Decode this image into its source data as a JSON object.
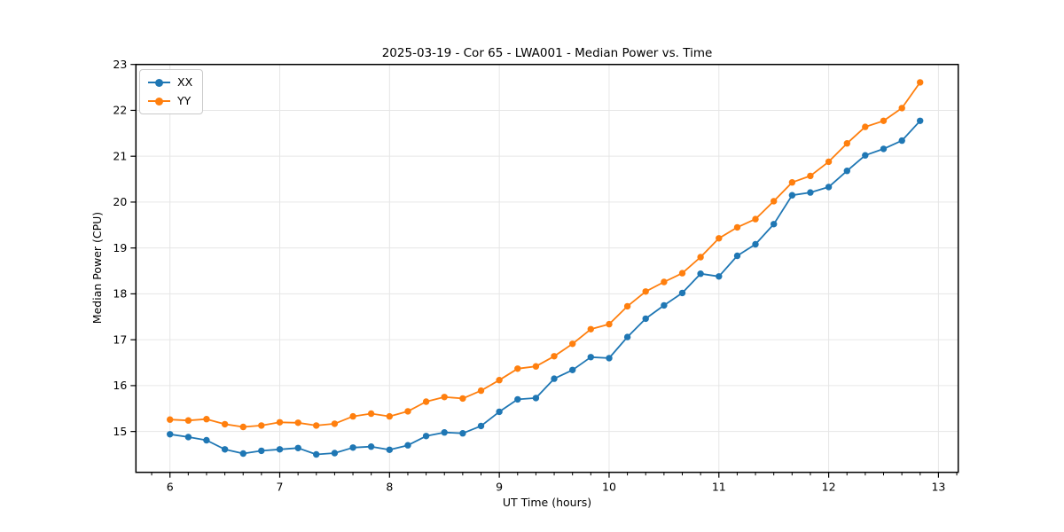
{
  "chart": {
    "title": "2025-03-19 - Cor 65 - LWA001 - Median Power vs. Time",
    "xlabel": "UT Time (hours)",
    "ylabel": "Median Power (CPU)"
  },
  "legend": {
    "items": [
      {
        "label": "XX",
        "color": "#1f77b4"
      },
      {
        "label": "YY",
        "color": "#ff7f0e"
      }
    ]
  },
  "chart_data": {
    "type": "line",
    "title": "2025-03-19 - Cor 65 - LWA001 - Median Power vs. Time",
    "xlabel": "UT Time (hours)",
    "ylabel": "Median Power (CPU)",
    "grid": true,
    "grid_color": "#e6e6e6",
    "legend_position": "upper left",
    "marker": "circle",
    "xlim": [
      5.69,
      13.18
    ],
    "ylim": [
      14.11,
      23.0
    ],
    "x_ticks": [
      6,
      7,
      8,
      9,
      10,
      11,
      12,
      13
    ],
    "y_ticks": [
      15,
      16,
      17,
      18,
      19,
      20,
      21,
      22,
      23
    ],
    "x_minor_ticks_per_hour": 6,
    "x": [
      6.0,
      6.167,
      6.333,
      6.5,
      6.667,
      6.833,
      7.0,
      7.167,
      7.333,
      7.5,
      7.667,
      7.833,
      8.0,
      8.167,
      8.333,
      8.5,
      8.667,
      8.833,
      9.0,
      9.167,
      9.333,
      9.5,
      9.667,
      9.833,
      10.0,
      10.167,
      10.333,
      10.5,
      10.667,
      10.833,
      11.0,
      11.167,
      11.333,
      11.5,
      11.667,
      11.833,
      12.0,
      12.167,
      12.333,
      12.5,
      12.667,
      12.833
    ],
    "series": [
      {
        "name": "XX",
        "color": "#1f77b4",
        "values": [
          14.94,
          14.88,
          14.81,
          14.61,
          14.52,
          14.58,
          14.61,
          14.64,
          14.5,
          14.53,
          14.65,
          14.67,
          14.6,
          14.7,
          14.9,
          14.98,
          14.96,
          15.12,
          15.43,
          15.7,
          15.73,
          16.15,
          16.34,
          16.62,
          16.6,
          17.06,
          17.46,
          17.75,
          18.02,
          18.44,
          18.38,
          18.83,
          19.08,
          19.52,
          20.15,
          20.21,
          20.33,
          20.68,
          21.02,
          21.16,
          21.34,
          21.77
        ]
      },
      {
        "name": "YY",
        "color": "#ff7f0e",
        "values": [
          15.26,
          15.24,
          15.27,
          15.16,
          15.1,
          15.13,
          15.2,
          15.19,
          15.13,
          15.17,
          15.33,
          15.39,
          15.33,
          15.44,
          15.65,
          15.75,
          15.72,
          15.89,
          16.12,
          16.37,
          16.42,
          16.64,
          16.91,
          17.23,
          17.34,
          17.73,
          18.05,
          18.26,
          18.45,
          18.8,
          19.21,
          19.45,
          19.63,
          20.02,
          20.43,
          20.57,
          20.88,
          21.28,
          21.64,
          21.77,
          22.05,
          22.61
        ]
      }
    ]
  }
}
